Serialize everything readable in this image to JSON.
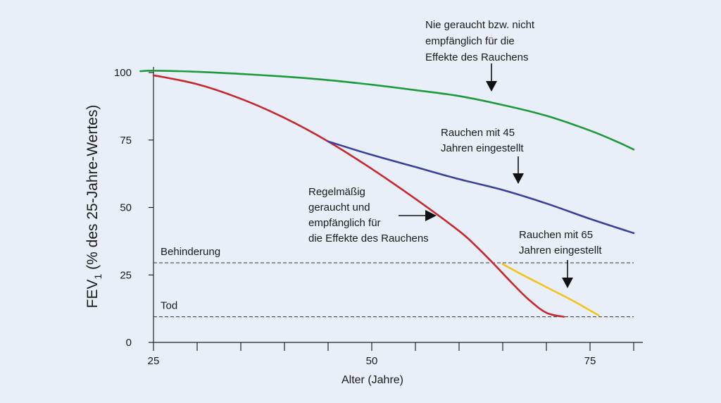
{
  "chart_data": {
    "type": "line",
    "xlabel": "Alter (Jahre)",
    "ylabel": {
      "main": "FEV",
      "subscript": "1",
      "rest": " (% des 25-Jahre-Wertes)"
    },
    "xlim": [
      25,
      81
    ],
    "ylim": [
      0,
      100
    ],
    "x_ticks": [
      25,
      50,
      75
    ],
    "x_minor_ticks": [
      30,
      35,
      40,
      45,
      55,
      60,
      65,
      70,
      80
    ],
    "y_ticks": [
      0,
      25,
      50,
      75,
      100
    ],
    "grid": false,
    "legend": "none",
    "series": [
      {
        "key": "never",
        "color": "#1e9a3c",
        "points": [
          [
            23.5,
            100.5
          ],
          [
            25,
            100.7
          ],
          [
            30,
            100.3
          ],
          [
            35,
            99.5
          ],
          [
            40,
            98.5
          ],
          [
            45,
            97.2
          ],
          [
            50,
            95.5
          ],
          [
            55,
            93.5
          ],
          [
            60,
            91.3
          ],
          [
            65,
            88.0
          ],
          [
            70,
            84.0
          ],
          [
            75,
            78.5
          ],
          [
            78,
            74.5
          ],
          [
            80,
            71.5
          ]
        ]
      },
      {
        "key": "regular",
        "color": "#c8282d",
        "points": [
          [
            25,
            99
          ],
          [
            30,
            95.7
          ],
          [
            35,
            90.3
          ],
          [
            40,
            83.2
          ],
          [
            45,
            74.5
          ],
          [
            50,
            64.3
          ],
          [
            55,
            53.2
          ],
          [
            60,
            41.3
          ],
          [
            62,
            35.5
          ],
          [
            64,
            29.0
          ],
          [
            66,
            22.2
          ],
          [
            68,
            15.8
          ],
          [
            70,
            11.0
          ],
          [
            72,
            9.5
          ]
        ]
      },
      {
        "key": "stop45",
        "color": "#3a3f9e",
        "points": [
          [
            45,
            74.5
          ],
          [
            50,
            69.5
          ],
          [
            55,
            65.0
          ],
          [
            60,
            60.5
          ],
          [
            65,
            56.5
          ],
          [
            70,
            51.5
          ],
          [
            75,
            45.8
          ],
          [
            80,
            40.5
          ]
        ]
      },
      {
        "key": "stop65",
        "color": "#f5c21b",
        "points": [
          [
            65,
            29.0
          ],
          [
            67,
            25.5
          ],
          [
            70,
            20.5
          ],
          [
            73,
            15.5
          ],
          [
            76,
            10.0
          ]
        ]
      }
    ],
    "reference_lines": [
      {
        "key": "behinderung",
        "label": "Behinderung",
        "y": 29.5,
        "x_range": [
          25,
          80
        ]
      },
      {
        "key": "tod",
        "label": "Tod",
        "y": 9.5,
        "x_range": [
          25,
          80
        ]
      }
    ],
    "annotations": [
      {
        "key": "never",
        "lines": [
          "Nie geraucht bzw. nicht",
          "empfänglich für die",
          "Effekte des Rauchens"
        ],
        "arrow_to": [
          64,
          89
        ]
      },
      {
        "key": "stop45",
        "lines": [
          "Rauchen mit 45",
          "Jahren eingestellt"
        ],
        "arrow_to": [
          66.5,
          57
        ]
      },
      {
        "key": "regular",
        "lines": [
          "Regelmäßig",
          "geraucht und",
          "empfänglich für",
          "die Effekte des Rauchens"
        ],
        "arrow_to": [
          58,
          46.5
        ]
      },
      {
        "key": "stop65",
        "lines": [
          "Rauchen mit 65",
          "Jahren eingestellt"
        ],
        "arrow_to": [
          71,
          19
        ]
      }
    ]
  }
}
